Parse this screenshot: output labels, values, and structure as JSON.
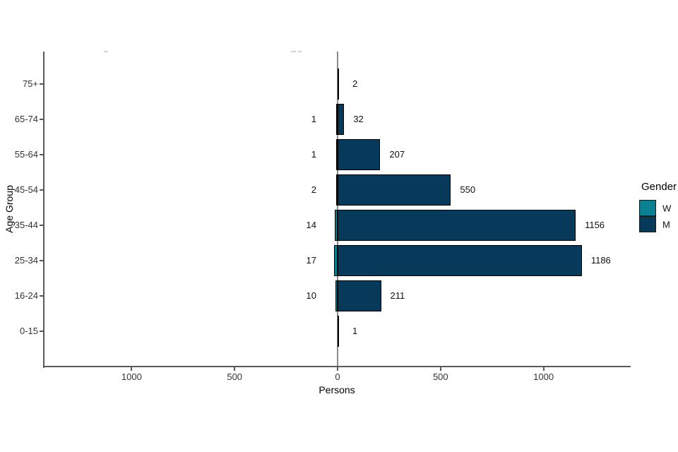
{
  "chart_data": {
    "type": "bar",
    "variant": "horizontal-diverging-population-pyramid",
    "title": "",
    "xlabel": "Persons",
    "ylabel": "Age Group",
    "categories_top_to_bottom": [
      "75+",
      "65-74",
      "55-64",
      "45-54",
      "35-44",
      "25-34",
      "16-24",
      "0-15"
    ],
    "series": [
      {
        "name": "W",
        "side": "left",
        "color": "#0c8093",
        "values": [
          0,
          1,
          1,
          2,
          14,
          17,
          10,
          0
        ]
      },
      {
        "name": "M",
        "side": "right",
        "color": "#073a5a",
        "values": [
          2,
          32,
          207,
          550,
          1156,
          1186,
          211,
          1
        ]
      }
    ],
    "bar_labels": {
      "left": [
        "",
        "1",
        "1",
        "2",
        "14",
        "17",
        "10",
        ""
      ],
      "right": [
        "2",
        "32",
        "207",
        "550",
        "1156",
        "1186",
        "211",
        "1"
      ]
    },
    "x_axis": {
      "tick_values": [
        -1000,
        -500,
        0,
        500,
        1000
      ],
      "tick_labels": [
        "1000",
        "500",
        "0",
        "500",
        "1000"
      ],
      "range_persons": [
        -1420,
        1430
      ]
    },
    "y_axis": {
      "tick_labels": [
        "75+",
        "65-74",
        "55-64",
        "45-54",
        "35-44",
        "25-34",
        "16-24",
        "0-15"
      ]
    },
    "legend": {
      "title": "Gender",
      "position": "right",
      "entries": [
        {
          "label": "W",
          "color": "#0c8093"
        },
        {
          "label": "M",
          "color": "#073a5a"
        }
      ]
    },
    "grid": false,
    "background": "#ffffff",
    "zero_line_color": "#8c8c8c",
    "axis_line_color": "#595959",
    "bar_border_color": "#000000"
  }
}
